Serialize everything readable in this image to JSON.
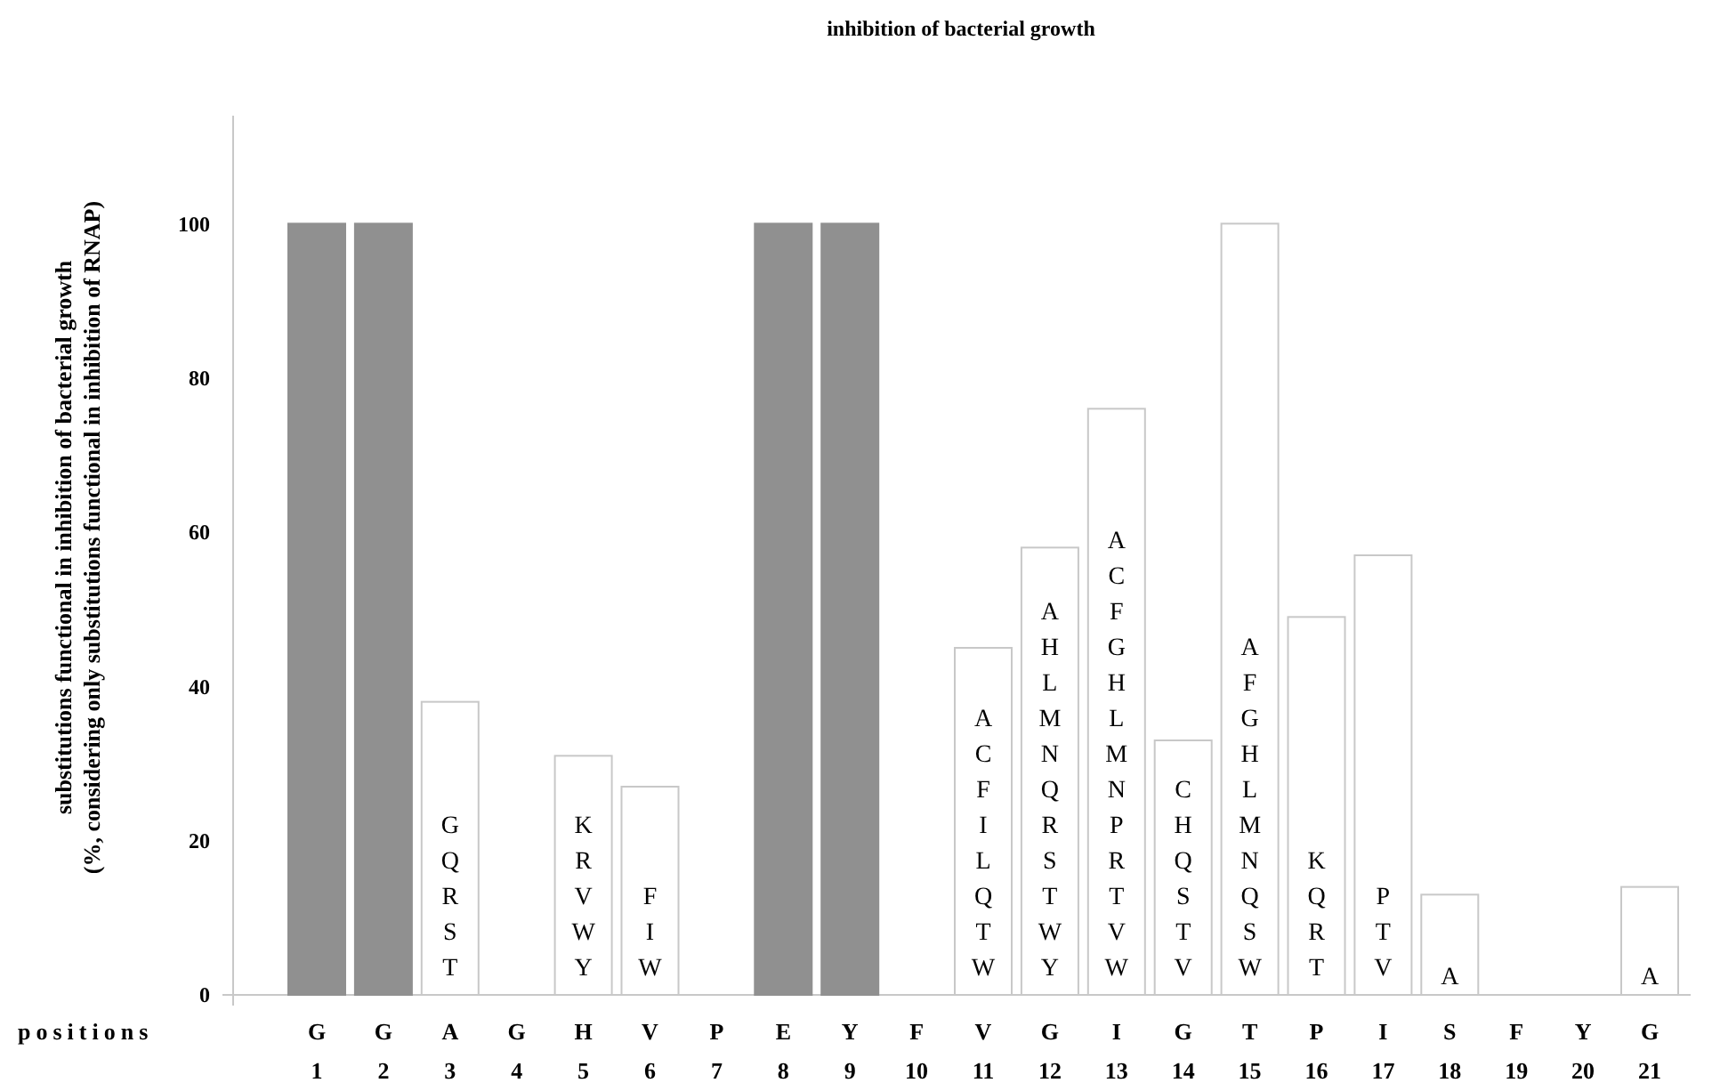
{
  "chart_data": {
    "type": "bar",
    "title": "inhibition of bacterial growth",
    "ylabel": "substitutions functional in inhibition of bacterial growth\n(%, considering only substitutions functional in inhibition of RNAP)",
    "xlabel": "positions",
    "categories": [
      "G\n1",
      "G\n2",
      "A\n3",
      "G\n4",
      "H\n5",
      "V\n6",
      "P\n7",
      "E\n8",
      "Y\n9",
      "F\n10",
      "V\n11",
      "G\n12",
      "I\n13",
      "G\n14",
      "T\n15",
      "P\n16",
      "I\n17",
      "S\n18",
      "F\n19",
      "Y\n20",
      "G\n21"
    ],
    "values": [
      100,
      100,
      38,
      0,
      31,
      27,
      0,
      100,
      100,
      0,
      45,
      58,
      76,
      33,
      100,
      49,
      57,
      13,
      0,
      0,
      14
    ],
    "colors": [
      "#909090",
      "#909090",
      "#ffffff",
      "#ffffff",
      "#ffffff",
      "#ffffff",
      "#ffffff",
      "#909090",
      "#909090",
      "#ffffff",
      "#ffffff",
      "#ffffff",
      "#ffffff",
      "#ffffff",
      "#ffffff",
      "#ffffff",
      "#ffffff",
      "#ffffff",
      "#ffffff",
      "#ffffff",
      "#ffffff"
    ],
    "ylim": [
      0,
      114
    ],
    "yticks": [
      0,
      20,
      40,
      60,
      80,
      100
    ],
    "grid": false,
    "annotations": [
      {
        "text": "GQRST",
        "x": "A\n3",
        "y": 0
      },
      {
        "text": "KRVWY",
        "x": "H\n5",
        "y": 0
      },
      {
        "text": "FIW",
        "x": "V\n6",
        "y": 0
      },
      {
        "text": "ACFILQTW",
        "x": "V\n11",
        "y": 0
      },
      {
        "text": "AHLMNQRSTWY",
        "x": "G\n12",
        "y": 0
      },
      {
        "text": "ACFGHLMNPRTVW",
        "x": "I\n13",
        "y": 0
      },
      {
        "text": "CHQSTV",
        "x": "G\n14",
        "y": 0
      },
      {
        "text": "AFGHLMNQSW",
        "x": "T\n15",
        "y": 0
      },
      {
        "text": "KQRT",
        "x": "P\n16",
        "y": 0
      },
      {
        "text": "PTV",
        "x": "I\n17",
        "y": 0
      },
      {
        "text": "A",
        "x": "S\n18",
        "y": 0
      },
      {
        "text": "A",
        "x": "G\n21",
        "y": 0
      }
    ]
  }
}
